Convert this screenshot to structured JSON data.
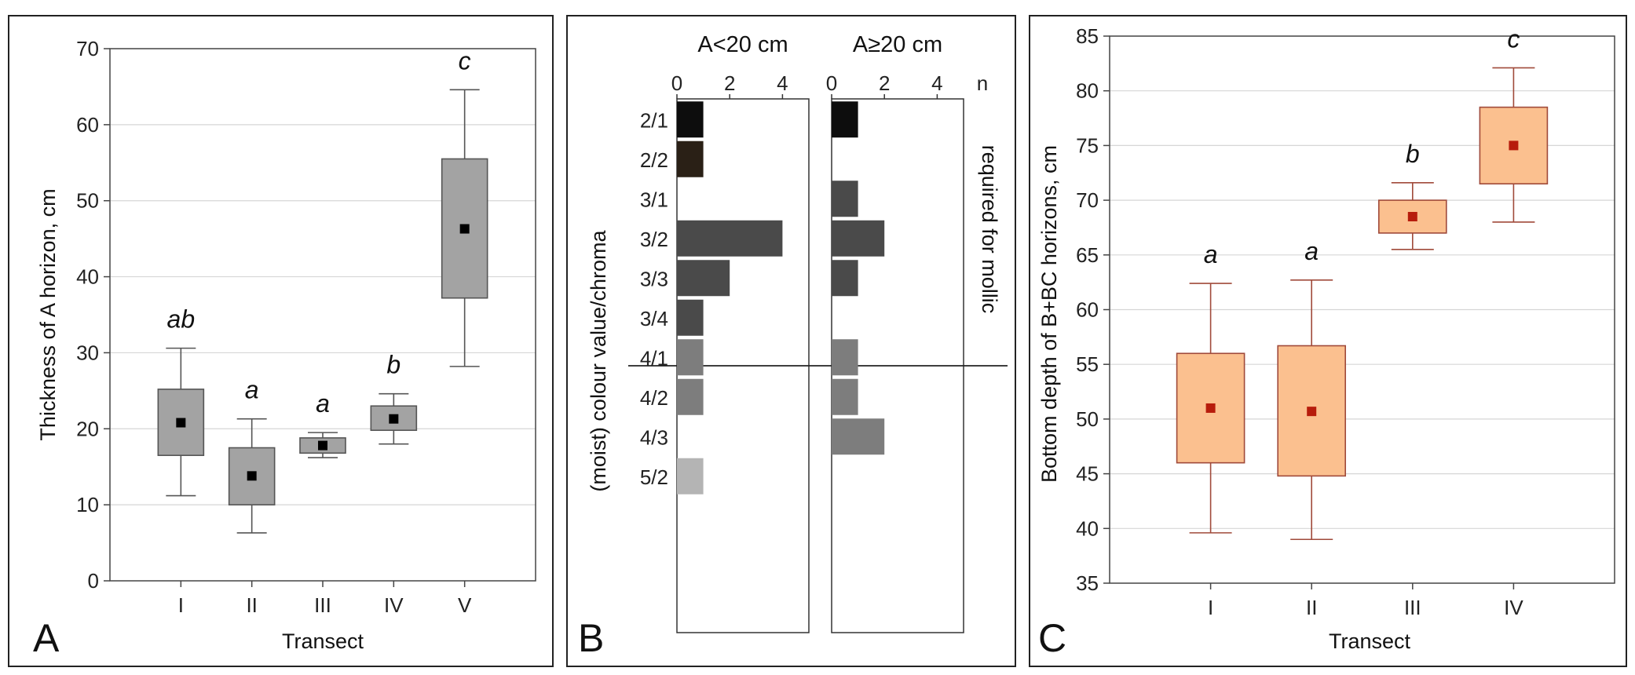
{
  "chart_data": [
    {
      "panel": "A",
      "type": "box",
      "xlabel": "Transect",
      "ylabel": "Thickness of A horizon, cm",
      "ylim": [
        0,
        70
      ],
      "yticks": [
        "0",
        "10",
        "20",
        "30",
        "40",
        "50",
        "60",
        "70"
      ],
      "grid": true,
      "box_color": "#a3a3a3",
      "categories": [
        "I",
        "II",
        "III",
        "IV",
        "V"
      ],
      "groups": [
        "ab",
        "a",
        "a",
        "b",
        "c"
      ],
      "median": [
        20.8,
        13.8,
        17.8,
        21.3,
        46.3
      ],
      "q1": [
        16.5,
        10.0,
        16.8,
        19.8,
        37.2
      ],
      "q3": [
        25.2,
        17.5,
        18.8,
        23.0,
        55.5
      ],
      "whisker_low": [
        11.2,
        6.3,
        16.2,
        18.0,
        28.2
      ],
      "whisker_high": [
        30.6,
        21.3,
        19.5,
        24.6,
        64.6
      ]
    },
    {
      "panel": "B",
      "type": "bar",
      "orientation": "horizontal",
      "xlabel": "n",
      "ylabel": "(moist) colour value/chroma",
      "right_label": "required for mollic",
      "xticks": [
        "0",
        "2",
        "4"
      ],
      "xlim": [
        0,
        5
      ],
      "categories": [
        "2/1",
        "2/2",
        "3/1",
        "3/2",
        "3/3",
        "3/4",
        "4/1",
        "4/2",
        "4/3",
        "5/2"
      ],
      "bar_colors": [
        "#0d0d0d",
        "#2a2016",
        "#4a4a4a",
        "#4a4a4a",
        "#4a4a4a",
        "#4a4a4a",
        "#7d7d7d",
        "#7d7d7d",
        "#7d7d7d",
        "#b4b4b4"
      ],
      "series": [
        {
          "name": "A<20 cm",
          "values": [
            1,
            1,
            0,
            4,
            2,
            1,
            1,
            1,
            0,
            1
          ]
        },
        {
          "name": "A≥20 cm",
          "values": [
            1,
            0,
            1,
            2,
            1,
            0,
            1,
            1,
            2,
            0
          ]
        }
      ]
    },
    {
      "panel": "C",
      "type": "box",
      "xlabel": "Transect",
      "ylabel": "Bottom depth of B+BC horizons, cm",
      "ylim": [
        35,
        85
      ],
      "yticks": [
        "35",
        "40",
        "45",
        "50",
        "55",
        "60",
        "65",
        "70",
        "75",
        "80",
        "85"
      ],
      "grid": true,
      "box_color": "#fbc08f",
      "edge_color": "#a04a3a",
      "marker_color": "#b71c0c",
      "categories": [
        "I",
        "II",
        "III",
        "IV"
      ],
      "groups": [
        "a",
        "a",
        "b",
        "c"
      ],
      "median": [
        51.0,
        50.7,
        68.5,
        75.0
      ],
      "q1": [
        46.0,
        44.8,
        67.0,
        71.5
      ],
      "q3": [
        56.0,
        56.7,
        70.0,
        78.5
      ],
      "whisker_low": [
        39.6,
        39.0,
        65.5,
        68.0
      ],
      "whisker_high": [
        62.4,
        62.7,
        71.6,
        82.1
      ]
    }
  ]
}
